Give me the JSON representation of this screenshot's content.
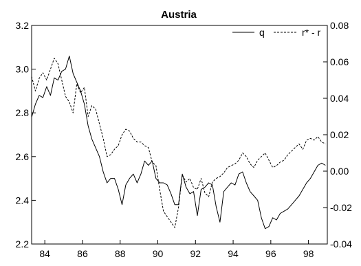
{
  "chart_data": {
    "type": "line",
    "title": "Austria",
    "xlabel": "",
    "ylabel_left": "",
    "ylabel_right": "",
    "xlim": [
      1983.3,
      1999.0
    ],
    "ylim_left": [
      2.2,
      3.2
    ],
    "ylim_right": [
      -0.04,
      0.08
    ],
    "x_ticks": [
      84,
      86,
      88,
      90,
      92,
      94,
      96,
      98
    ],
    "y_ticks_left": [
      "2.2",
      "2.4",
      "2.6",
      "2.8",
      "3.0",
      "3.2"
    ],
    "y_ticks_right": [
      "-0.04",
      "-0.02",
      "0.00",
      "0.02",
      "0.04",
      "0.06",
      "0.08"
    ],
    "grid": false,
    "legend_position": "top-right",
    "series": [
      {
        "name": "q",
        "axis": "left",
        "style": "solid",
        "x": [
          83.3,
          83.5,
          83.7,
          83.9,
          84.1,
          84.3,
          84.5,
          84.7,
          84.9,
          85.1,
          85.3,
          85.5,
          85.7,
          85.9,
          86.1,
          86.3,
          86.5,
          86.7,
          86.9,
          87.1,
          87.3,
          87.5,
          87.7,
          87.9,
          88.1,
          88.3,
          88.5,
          88.7,
          88.9,
          89.1,
          89.3,
          89.5,
          89.7,
          89.9,
          90.1,
          90.3,
          90.5,
          90.7,
          90.9,
          91.1,
          91.3,
          91.5,
          91.7,
          91.9,
          92.1,
          92.3,
          92.5,
          92.7,
          92.9,
          93.1,
          93.3,
          93.5,
          93.7,
          93.9,
          94.1,
          94.3,
          94.5,
          94.7,
          94.9,
          95.1,
          95.3,
          95.5,
          95.7,
          95.9,
          96.1,
          96.3,
          96.5,
          96.7,
          96.9,
          97.1,
          97.3,
          97.5,
          97.7,
          97.9,
          98.1,
          98.3,
          98.5,
          98.7,
          98.9
        ],
        "values": [
          2.78,
          2.84,
          2.88,
          2.87,
          2.92,
          2.88,
          2.96,
          2.95,
          2.99,
          3.0,
          3.06,
          2.98,
          2.94,
          2.9,
          2.84,
          2.74,
          2.68,
          2.64,
          2.6,
          2.53,
          2.48,
          2.5,
          2.5,
          2.45,
          2.38,
          2.47,
          2.5,
          2.52,
          2.48,
          2.52,
          2.58,
          2.56,
          2.58,
          2.5,
          2.48,
          2.48,
          2.47,
          2.43,
          2.38,
          2.38,
          2.52,
          2.46,
          2.43,
          2.44,
          2.33,
          2.45,
          2.46,
          2.48,
          2.47,
          2.37,
          2.3,
          2.44,
          2.46,
          2.48,
          2.47,
          2.52,
          2.53,
          2.48,
          2.44,
          2.42,
          2.4,
          2.32,
          2.27,
          2.28,
          2.32,
          2.31,
          2.34,
          2.35,
          2.36,
          2.38,
          2.4,
          2.42,
          2.45,
          2.48,
          2.5,
          2.53,
          2.56,
          2.57,
          2.56
        ]
      },
      {
        "name": "r* - r",
        "axis": "right",
        "style": "dashed",
        "x": [
          83.3,
          83.5,
          83.7,
          83.9,
          84.1,
          84.3,
          84.5,
          84.7,
          84.9,
          85.1,
          85.3,
          85.5,
          85.7,
          85.9,
          86.1,
          86.3,
          86.5,
          86.7,
          86.9,
          87.1,
          87.3,
          87.5,
          87.7,
          87.9,
          88.1,
          88.3,
          88.5,
          88.7,
          88.9,
          89.1,
          89.3,
          89.5,
          89.7,
          89.9,
          90.1,
          90.3,
          90.5,
          90.7,
          90.9,
          91.1,
          91.3,
          91.5,
          91.7,
          91.9,
          92.1,
          92.3,
          92.5,
          92.7,
          92.9,
          93.1,
          93.3,
          93.5,
          93.7,
          93.9,
          94.1,
          94.3,
          94.5,
          94.7,
          94.9,
          95.1,
          95.3,
          95.5,
          95.7,
          95.9,
          96.1,
          96.3,
          96.5,
          96.7,
          96.9,
          97.1,
          97.3,
          97.5,
          97.7,
          97.9,
          98.1,
          98.3,
          98.5,
          98.7,
          98.9
        ],
        "values": [
          0.052,
          0.044,
          0.051,
          0.054,
          0.05,
          0.056,
          0.062,
          0.059,
          0.05,
          0.041,
          0.038,
          0.032,
          0.048,
          0.043,
          0.046,
          0.03,
          0.036,
          0.034,
          0.026,
          0.018,
          0.008,
          0.009,
          0.012,
          0.014,
          0.02,
          0.023,
          0.022,
          0.018,
          0.016,
          0.016,
          0.014,
          0.013,
          0.005,
          0.003,
          -0.01,
          -0.022,
          -0.025,
          -0.028,
          -0.031,
          -0.02,
          -0.002,
          -0.006,
          -0.004,
          -0.009,
          -0.01,
          -0.004,
          -0.012,
          -0.014,
          -0.006,
          -0.004,
          -0.003,
          -0.001,
          0.002,
          0.003,
          0.004,
          0.006,
          0.01,
          0.008,
          0.004,
          0.002,
          0.006,
          0.008,
          0.01,
          0.006,
          0.002,
          0.003,
          0.005,
          0.006,
          0.009,
          0.011,
          0.013,
          0.015,
          0.012,
          0.017,
          0.018,
          0.017,
          0.019,
          0.016,
          0.015
        ]
      }
    ]
  }
}
